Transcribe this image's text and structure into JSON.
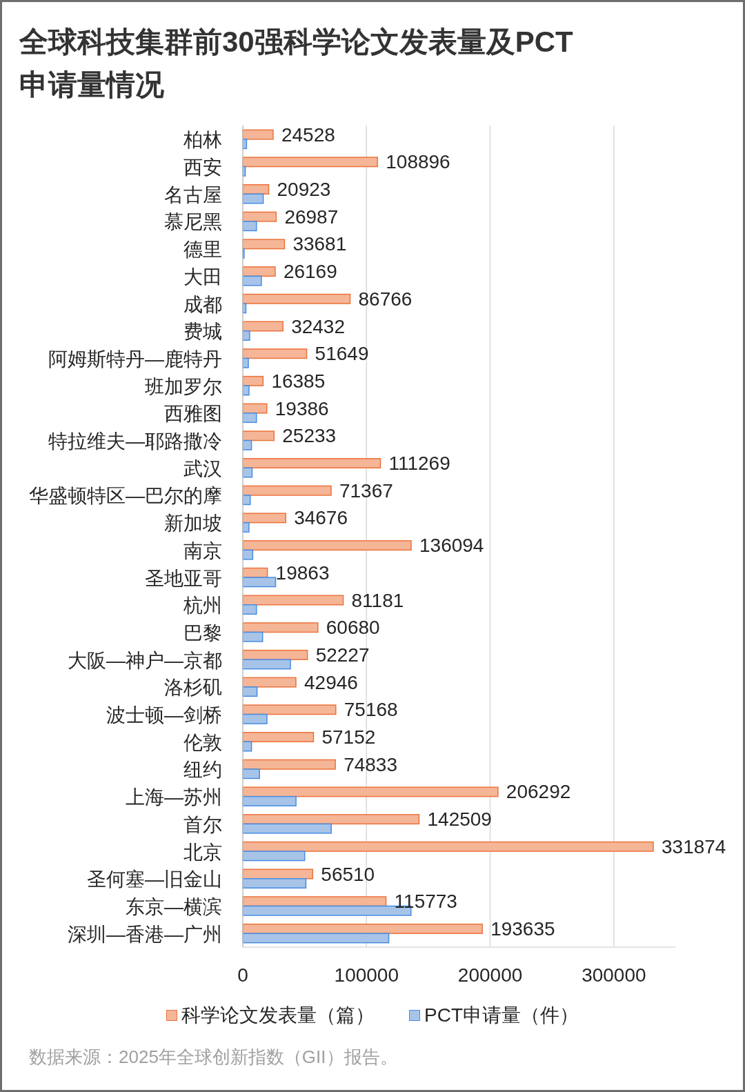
{
  "chart_data": {
    "type": "bar",
    "orientation": "horizontal",
    "title": "全球科技集群前30强科学论文发表量及PCT申请量情况",
    "categories": [
      "柏林",
      "西安",
      "名古屋",
      "慕尼黑",
      "德里",
      "大田",
      "成都",
      "费城",
      "阿姆斯特丹—鹿特丹",
      "班加罗尔",
      "西雅图",
      "特拉维夫—耶路撒冷",
      "武汉",
      "华盛顿特区—巴尔的摩",
      "新加坡",
      "南京",
      "圣地亚哥",
      "杭州",
      "巴黎",
      "大阪—神户—京都",
      "洛杉矶",
      "波士顿—剑桥",
      "伦敦",
      "纽约",
      "上海—苏州",
      "首尔",
      "北京",
      "圣何塞—旧金山",
      "东京—横滨",
      "深圳—香港—广州"
    ],
    "series": [
      {
        "name": "科学论文发表量（篇）",
        "color": "#f5b597",
        "values": [
          24528,
          108896,
          20923,
          26987,
          33681,
          26169,
          86766,
          32432,
          51649,
          16385,
          19386,
          25233,
          111269,
          71367,
          34676,
          136094,
          19863,
          81181,
          60680,
          52227,
          42946,
          75168,
          57152,
          74833,
          206292,
          142509,
          331874,
          56510,
          115773,
          193635
        ],
        "value_labels": [
          "24528",
          "108896",
          "20923",
          "26987",
          "33681",
          "26169",
          "86766",
          "32432",
          "51649",
          "16385",
          "19386",
          "25233",
          "111269",
          "71367",
          "34676",
          "136094",
          "19863",
          "81181",
          "60680",
          "52227",
          "42946",
          "75168",
          "57152",
          "74833",
          "206292",
          "142509",
          "331874",
          "56510",
          "115773",
          "193635"
        ]
      },
      {
        "name": "PCT申请量（件）",
        "color": "#a7c4e8",
        "values": [
          3000,
          2000,
          16500,
          11000,
          1000,
          15000,
          2500,
          5500,
          4500,
          5000,
          11000,
          7000,
          7500,
          6000,
          5000,
          8000,
          26500,
          11000,
          16000,
          38500,
          11500,
          19500,
          7000,
          13500,
          43000,
          71500,
          50000,
          51000,
          136000,
          118000
        ]
      }
    ],
    "xlim": [
      0,
      350000
    ],
    "xticks": [
      0,
      100000,
      200000,
      300000
    ],
    "grid": "x",
    "legend": "bottom",
    "annotations": [
      "数据来源：2025年全球创新指数（GII）报告。"
    ]
  }
}
